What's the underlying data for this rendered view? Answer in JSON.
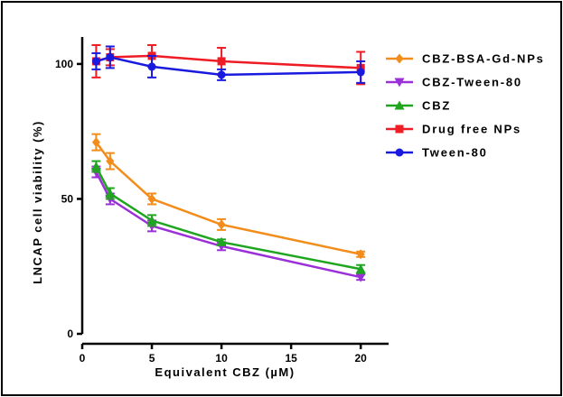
{
  "chart_data": {
    "type": "line",
    "title": "",
    "xlabel": "Equivalent CBZ (µM)",
    "ylabel": "LNCAP cell viability (%)",
    "xlim": [
      0,
      22
    ],
    "ylim": [
      0,
      110
    ],
    "xticks": [
      0,
      5,
      10,
      15,
      20
    ],
    "yticks": [
      0,
      50,
      100
    ],
    "grid": false,
    "legend_position": "top-right",
    "x": [
      1,
      2,
      5,
      10,
      20
    ],
    "series": [
      {
        "name": "CBZ-BSA-Gd-NPs",
        "color": "#f28c1b",
        "marker": "diamond",
        "values": [
          71,
          64,
          50,
          40.5,
          29.5
        ],
        "errors": [
          3,
          3,
          2,
          2,
          1
        ]
      },
      {
        "name": "CBZ-Tween-80",
        "color": "#9b30d9",
        "marker": "triangle-down",
        "values": [
          60,
          50,
          40,
          32.5,
          21
        ],
        "errors": [
          2,
          2,
          2,
          1.5,
          1
        ]
      },
      {
        "name": "CBZ",
        "color": "#1fa51f",
        "marker": "triangle-up",
        "values": [
          62,
          52,
          42,
          34,
          24
        ],
        "errors": [
          2,
          2,
          2,
          1,
          1.5
        ]
      },
      {
        "name": "Drug free NPs",
        "color": "#ee1c24",
        "marker": "square",
        "values": [
          101,
          102.5,
          103,
          101,
          98.5
        ],
        "errors": [
          6,
          3,
          4,
          5,
          6
        ]
      },
      {
        "name": "Tween-80",
        "color": "#1a1adf",
        "marker": "circle",
        "values": [
          101,
          102.5,
          99,
          96,
          97
        ],
        "errors": [
          3,
          4,
          4,
          2,
          4
        ]
      }
    ]
  }
}
